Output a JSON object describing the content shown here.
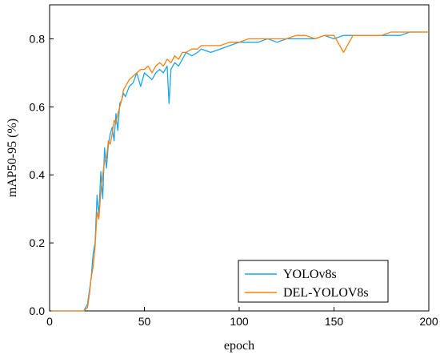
{
  "chart_data": {
    "type": "line",
    "title": "",
    "xlabel": "epoch",
    "ylabel": "mAP50-95 (%)",
    "xlim": [
      0,
      200
    ],
    "ylim": [
      0,
      0.9
    ],
    "x_ticks": [
      0,
      50,
      100,
      150,
      200
    ],
    "y_ticks": [
      0.0,
      0.2,
      0.4,
      0.6,
      0.8
    ],
    "x_tick_labels": [
      "0",
      "50",
      "100",
      "150",
      "200"
    ],
    "y_tick_labels": [
      "0.0",
      "0.2",
      "0.4",
      "0.6",
      "0.8"
    ],
    "grid": false,
    "legend_position": "bottom-right",
    "series": [
      {
        "name": "YOLOv8s",
        "color": "#1aa7e8",
        "x": [
          1,
          5,
          10,
          15,
          18,
          20,
          21,
          22,
          23,
          24,
          25,
          26,
          27,
          28,
          29,
          30,
          31,
          32,
          33,
          34,
          35,
          36,
          37,
          38,
          39,
          40,
          42,
          44,
          46,
          48,
          50,
          52,
          54,
          56,
          58,
          60,
          62,
          63,
          64,
          66,
          68,
          70,
          72,
          75,
          78,
          80,
          85,
          90,
          95,
          100,
          105,
          110,
          115,
          120,
          125,
          130,
          135,
          140,
          145,
          150,
          155,
          160,
          165,
          170,
          175,
          180,
          185,
          190,
          195,
          200
        ],
        "y": [
          0.0,
          0.0,
          0.0,
          0.0,
          0.0,
          0.02,
          0.06,
          0.1,
          0.17,
          0.2,
          0.34,
          0.28,
          0.41,
          0.33,
          0.48,
          0.42,
          0.49,
          0.52,
          0.54,
          0.5,
          0.58,
          0.53,
          0.61,
          0.62,
          0.64,
          0.63,
          0.66,
          0.67,
          0.7,
          0.66,
          0.7,
          0.69,
          0.68,
          0.7,
          0.71,
          0.7,
          0.72,
          0.61,
          0.71,
          0.73,
          0.72,
          0.74,
          0.76,
          0.75,
          0.76,
          0.77,
          0.76,
          0.77,
          0.78,
          0.79,
          0.79,
          0.79,
          0.8,
          0.79,
          0.8,
          0.8,
          0.8,
          0.8,
          0.81,
          0.8,
          0.81,
          0.81,
          0.81,
          0.81,
          0.81,
          0.81,
          0.81,
          0.82,
          0.82,
          0.82
        ]
      },
      {
        "name": "DEL-YOLOV8s",
        "color": "#ff7f0e",
        "x": [
          1,
          5,
          10,
          15,
          18,
          20,
          21,
          22,
          23,
          24,
          25,
          26,
          27,
          28,
          29,
          30,
          31,
          32,
          33,
          34,
          35,
          36,
          37,
          38,
          39,
          40,
          42,
          44,
          46,
          48,
          50,
          52,
          54,
          56,
          58,
          60,
          62,
          64,
          66,
          68,
          70,
          72,
          75,
          78,
          80,
          85,
          90,
          95,
          100,
          105,
          110,
          115,
          120,
          125,
          130,
          135,
          140,
          145,
          150,
          155,
          160,
          165,
          170,
          175,
          180,
          185,
          190,
          195,
          200
        ],
        "y": [
          0.0,
          0.0,
          0.0,
          0.0,
          0.0,
          0.01,
          0.05,
          0.1,
          0.13,
          0.19,
          0.29,
          0.27,
          0.35,
          0.4,
          0.44,
          0.45,
          0.5,
          0.49,
          0.52,
          0.56,
          0.55,
          0.58,
          0.6,
          0.62,
          0.65,
          0.66,
          0.68,
          0.69,
          0.7,
          0.71,
          0.71,
          0.72,
          0.7,
          0.72,
          0.73,
          0.72,
          0.74,
          0.73,
          0.75,
          0.74,
          0.76,
          0.76,
          0.77,
          0.77,
          0.78,
          0.78,
          0.78,
          0.79,
          0.79,
          0.8,
          0.8,
          0.8,
          0.8,
          0.8,
          0.81,
          0.81,
          0.8,
          0.81,
          0.81,
          0.76,
          0.81,
          0.81,
          0.81,
          0.81,
          0.82,
          0.82,
          0.82,
          0.82,
          0.82
        ]
      }
    ]
  }
}
